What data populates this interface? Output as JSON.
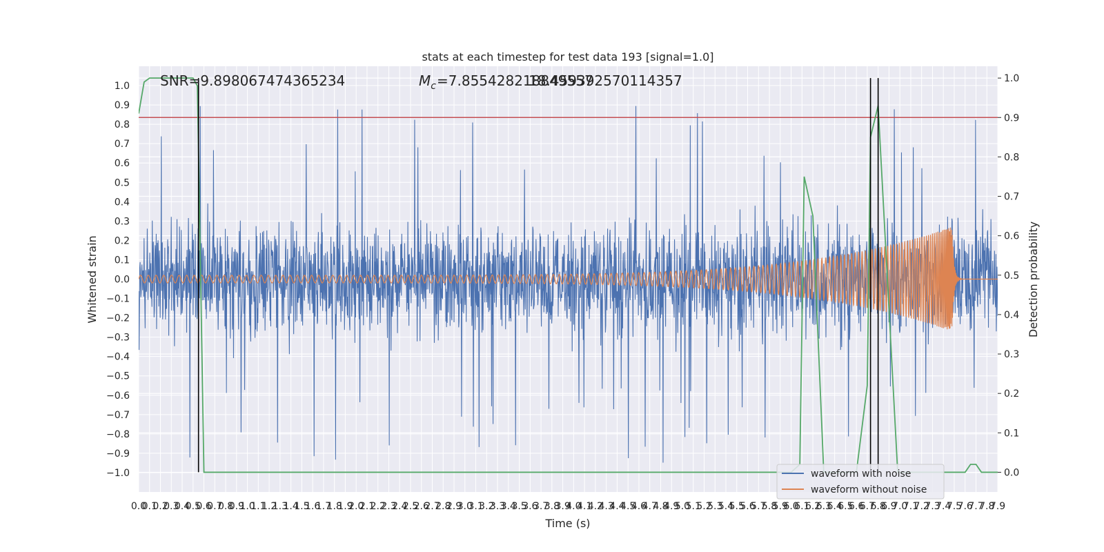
{
  "chart_data": {
    "type": "line",
    "title": "stats at each timestep for test data 193 [signal=1.0]",
    "xlabel": "Time (s)",
    "ylabel": "Whitened strain",
    "ylabel_right": "Detection probability",
    "xlim": [
      0.0,
      7.9
    ],
    "ylim": [
      -1.1,
      1.1
    ],
    "ylim_right": [
      -0.05,
      1.03
    ],
    "x_ticks": [
      "0.0",
      "0.1",
      "0.2",
      "0.3",
      "0.4",
      "0.5",
      "0.6",
      "0.7",
      "0.8",
      "0.9",
      "1.0",
      "1.1",
      "1.2",
      "1.3",
      "1.4",
      "1.5",
      "1.6",
      "1.7",
      "1.8",
      "1.9",
      "2.0",
      "2.1",
      "2.2",
      "2.3",
      "2.4",
      "2.5",
      "2.6",
      "2.7",
      "2.8",
      "2.9",
      "3.0",
      "3.1",
      "3.2",
      "3.3",
      "3.4",
      "3.5",
      "3.6",
      "3.7",
      "3.8",
      "3.9",
      "4.0",
      "4.1",
      "4.2",
      "4.3",
      "4.4",
      "4.5",
      "4.6",
      "4.7",
      "4.8",
      "4.9",
      "5.0",
      "5.1",
      "5.2",
      "5.3",
      "5.4",
      "5.5",
      "5.6",
      "5.7",
      "5.8",
      "5.9",
      "6.0",
      "6.1",
      "6.2",
      "6.3",
      "6.4",
      "6.5",
      "6.6",
      "6.7",
      "6.8",
      "6.9",
      "7.0",
      "7.1",
      "7.2",
      "7.3",
      "7.4",
      "7.5",
      "7.6",
      "7.7",
      "7.8",
      "7.9"
    ],
    "y_ticks_left": [
      "1.0",
      "0.9",
      "0.8",
      "0.7",
      "0.6",
      "0.5",
      "0.4",
      "0.3",
      "0.2",
      "0.1",
      "0.0",
      "-0.1",
      "-0.2",
      "-0.3",
      "-0.4",
      "-0.5",
      "-0.6",
      "-0.7",
      "-0.8",
      "-0.9",
      "-1.0"
    ],
    "y_ticks_right": [
      "1.0",
      "0.9",
      "0.8",
      "0.7",
      "0.6",
      "0.5",
      "0.4",
      "0.3",
      "0.2",
      "0.1",
      "0.0"
    ],
    "grid": true,
    "legend_position": "bottom-right",
    "annotations": {
      "snr": "SNR=9.898067474365234",
      "mc": "=7.855428218849557",
      "mc_overlap": "18.459392570114357"
    },
    "series": [
      {
        "name": "waveform with noise",
        "color": "#4c72b0",
        "amplitude": 0.55,
        "peak": 0.95
      },
      {
        "name": "waveform without noise",
        "color": "#dd8452",
        "start_amplitude": 0.02,
        "end_amplitude": 0.27,
        "merger_time": 7.48
      }
    ],
    "threshold": {
      "value": 0.9,
      "color": "#c44e52"
    },
    "detection_probability": {
      "color": "#55a868",
      "x": [
        0.0,
        0.05,
        0.1,
        0.5,
        0.54,
        0.6,
        6.0,
        6.08,
        6.12,
        6.2,
        6.3,
        6.6,
        6.7,
        6.73,
        6.8,
        6.98,
        7.05,
        7.6,
        7.65,
        7.7,
        7.75,
        7.8,
        7.9
      ],
      "y": [
        0.91,
        0.99,
        1.0,
        1.0,
        0.98,
        0.0,
        0.0,
        0.02,
        0.75,
        0.65,
        0.0,
        0.0,
        0.22,
        0.85,
        0.93,
        0.0,
        0.0,
        0.0,
        0.02,
        0.02,
        0.0,
        0.0,
        0.0
      ]
    },
    "vertical_markers": [
      0.55,
      6.73,
      6.8
    ]
  }
}
